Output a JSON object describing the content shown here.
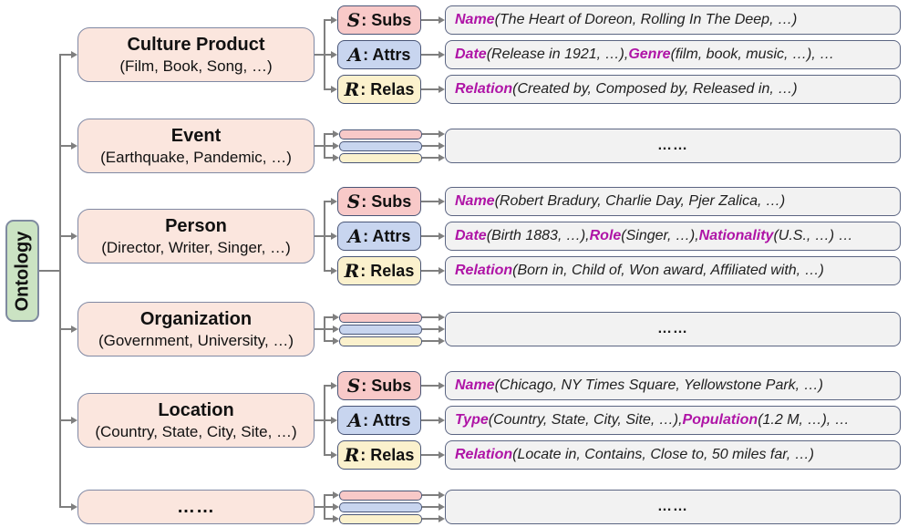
{
  "ontology": {
    "label": "Ontology"
  },
  "tags": {
    "subs": {
      "letter": "S",
      "suffix": ": Subs"
    },
    "attrs": {
      "letter": "A",
      "suffix": ": Attrs"
    },
    "relas": {
      "letter": "R",
      "suffix": ": Relas"
    }
  },
  "placeholder_dots": "……",
  "categories": [
    {
      "title": "Culture Product",
      "subtitle": "(Film, Book, Song, …)"
    },
    {
      "title": "Event",
      "subtitle": "(Earthquake, Pandemic, …)"
    },
    {
      "title": "Person",
      "subtitle": "(Director, Writer, Singer, …)"
    },
    {
      "title": "Organization",
      "subtitle": "(Government, University, …)"
    },
    {
      "title": "Location",
      "subtitle": "(Country, State, City, Site, …)"
    },
    {
      "title": "……",
      "subtitle": ""
    }
  ],
  "details": {
    "culture_product": {
      "subs": [
        {
          "k": "Name"
        },
        {
          "t": " (The Heart of Doreon, Rolling In The Deep, …)"
        }
      ],
      "attrs": [
        {
          "k": "Date"
        },
        {
          "t": " (Release in 1921, …), "
        },
        {
          "k": "Genre"
        },
        {
          "t": " (film, book, music, …), …"
        }
      ],
      "relas": [
        {
          "k": "Relation"
        },
        {
          "t": " (Created by, Composed by, Released in, …)"
        }
      ]
    },
    "person": {
      "subs": [
        {
          "k": "Name"
        },
        {
          "t": " (Robert Bradury, Charlie Day, Pjer Zalica, …)"
        }
      ],
      "attrs": [
        {
          "k": "Date"
        },
        {
          "t": " (Birth 1883, …), "
        },
        {
          "k": "Role"
        },
        {
          "t": " (Singer, …), "
        },
        {
          "k": "Nationality"
        },
        {
          "t": " (U.S., …) …"
        }
      ],
      "relas": [
        {
          "k": "Relation"
        },
        {
          "t": " (Born in, Child of, Won award, Affiliated with, …)"
        }
      ]
    },
    "location": {
      "subs": [
        {
          "k": "Name"
        },
        {
          "t": " (Chicago, NY Times Square, Yellowstone Park, …)"
        }
      ],
      "attrs": [
        {
          "k": "Type"
        },
        {
          "t": " (Country, State, City, Site, …), "
        },
        {
          "k": "Population"
        },
        {
          "t": " (1.2 M, …), …"
        }
      ],
      "relas": [
        {
          "k": "Relation"
        },
        {
          "t": " (Locate in, Contains, Close to, 50 miles far, …)"
        }
      ]
    }
  },
  "colors": {
    "key_magenta": "#AF14A6",
    "category_fill": "#FBE6DE",
    "subs_fill": "#F8C9C8",
    "attrs_fill": "#C8D5EF",
    "relas_fill": "#FBF1CD",
    "ontology_fill": "#CBE3C3",
    "detail_fill": "#F2F2F2",
    "connector_gray": "#7F7F7F"
  }
}
